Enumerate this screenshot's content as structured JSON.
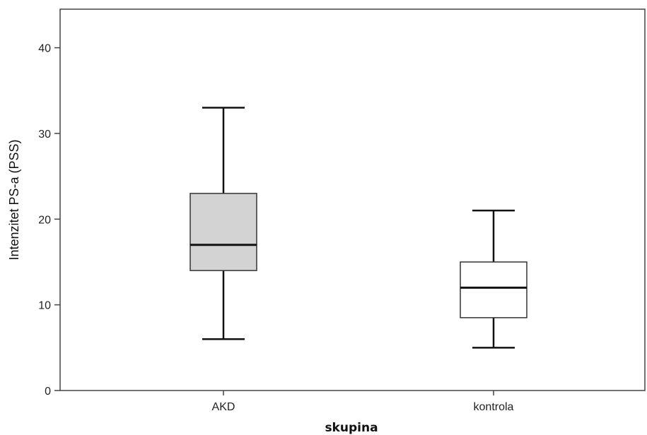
{
  "chart_data": {
    "type": "boxplot",
    "xlabel": "skupina",
    "ylabel": "Intenzitet PS-a (PSS)",
    "ylim": [
      0,
      44.5
    ],
    "yticks": [
      0,
      10,
      20,
      30,
      40
    ],
    "categories": [
      "AKD",
      "kontrola"
    ],
    "boxes": [
      {
        "category": "AKD",
        "min": 6,
        "q1": 14,
        "median": 17,
        "q3": 23,
        "max": 33,
        "fill": "#d3d3d3"
      },
      {
        "category": "kontrola",
        "min": 5,
        "q1": 8.5,
        "median": 12,
        "q3": 15,
        "max": 21,
        "fill": "#ffffff"
      }
    ],
    "grid": false,
    "legend": "none"
  }
}
